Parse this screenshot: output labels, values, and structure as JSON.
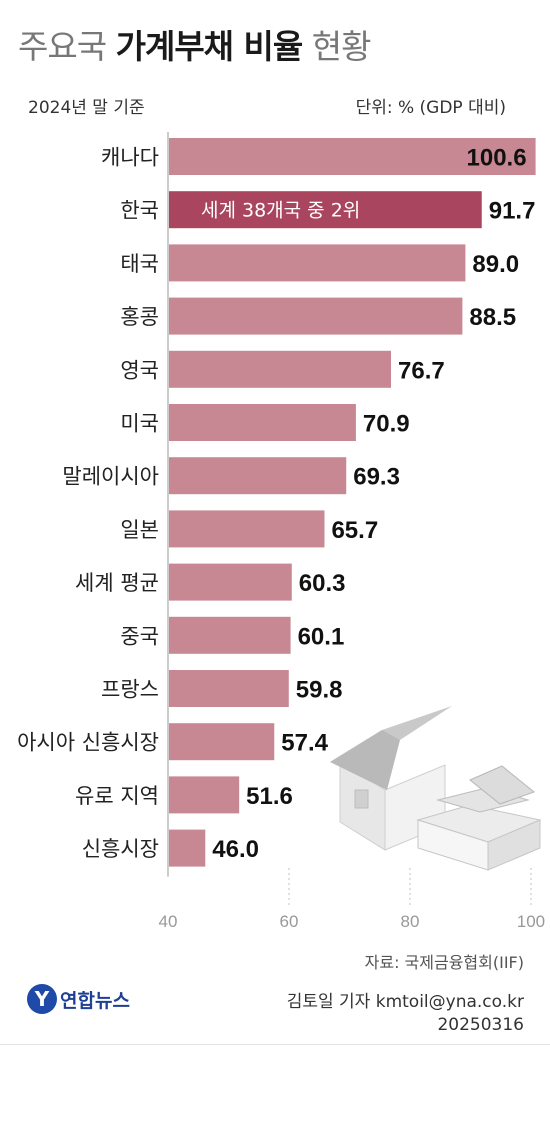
{
  "title": {
    "light_1": "주요국",
    "bold": "가계부채 비율",
    "light_2": "현황"
  },
  "base_year": "2024년 말 기준",
  "unit": "단위: % (GDP 대비)",
  "source": "자료: 국제금융협회(IIF)",
  "credit": "김토일 기자 kmtoil@yna.co.kr",
  "date": "20250316",
  "logo": {
    "text": "연합뉴스"
  },
  "colors": {
    "bar": "#c78893",
    "highlight_bar": "#a9455e",
    "axis": "#bbbbbb"
  },
  "illustration": "house-with-stacked-cash-icon",
  "chart_data": {
    "type": "bar",
    "orientation": "horizontal",
    "categories": [
      "캐나다",
      "한국",
      "태국",
      "홍콩",
      "영국",
      "미국",
      "말레이시아",
      "일본",
      "세계 평균",
      "중국",
      "프랑스",
      "아시아 신흥시장",
      "유로 지역",
      "신흥시장"
    ],
    "values": [
      100.6,
      91.7,
      89.0,
      88.5,
      76.7,
      70.9,
      69.3,
      65.7,
      60.3,
      60.1,
      59.8,
      57.4,
      51.6,
      46.0
    ],
    "value_labels": [
      "100.6",
      "91.7",
      "89.0",
      "88.5",
      "76.7",
      "70.9",
      "69.3",
      "65.7",
      "60.3",
      "60.1",
      "59.8",
      "57.4",
      "51.6",
      "46.0"
    ],
    "highlight_index": 1,
    "annotation": "세계 38개국 중 2위",
    "xlim": [
      40,
      101
    ],
    "xticks": [
      "40",
      "60",
      "80",
      "100"
    ]
  }
}
